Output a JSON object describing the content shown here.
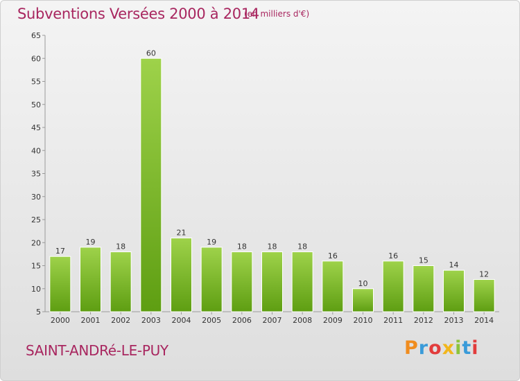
{
  "header": {
    "title": "Subventions Versées 2000 à 2014",
    "subtitle": "(en milliers d'€)"
  },
  "footer": {
    "commune": "SAINT-ANDRé-LE-PUY",
    "logo": "Proxiti",
    "logo_colors": [
      "#f08c1e",
      "#3a9bd9",
      "#e23c3c",
      "#f2b61c",
      "#8cc43c",
      "#3a9bd9",
      "#e23c3c"
    ]
  },
  "colors": {
    "bar_top": "#9ed24a",
    "bar_bottom": "#5e9e12",
    "axis": "#999999"
  },
  "chart_data": {
    "type": "bar",
    "title": "Subventions Versées 2000 à 2014",
    "subtitle": "(en milliers d'€)",
    "xlabel": "",
    "ylabel": "",
    "categories": [
      "2000",
      "2001",
      "2002",
      "2003",
      "2004",
      "2005",
      "2006",
      "2007",
      "2008",
      "2009",
      "2010",
      "2011",
      "2012",
      "2013",
      "2014"
    ],
    "values": [
      17,
      19,
      18,
      60,
      21,
      19,
      18,
      18,
      18,
      16,
      10,
      16,
      15,
      14,
      12
    ],
    "ylim": [
      5,
      65
    ],
    "yticks": [
      5,
      10,
      15,
      20,
      25,
      30,
      35,
      40,
      45,
      50,
      55,
      60,
      65
    ],
    "grid": false,
    "legend": "none"
  }
}
